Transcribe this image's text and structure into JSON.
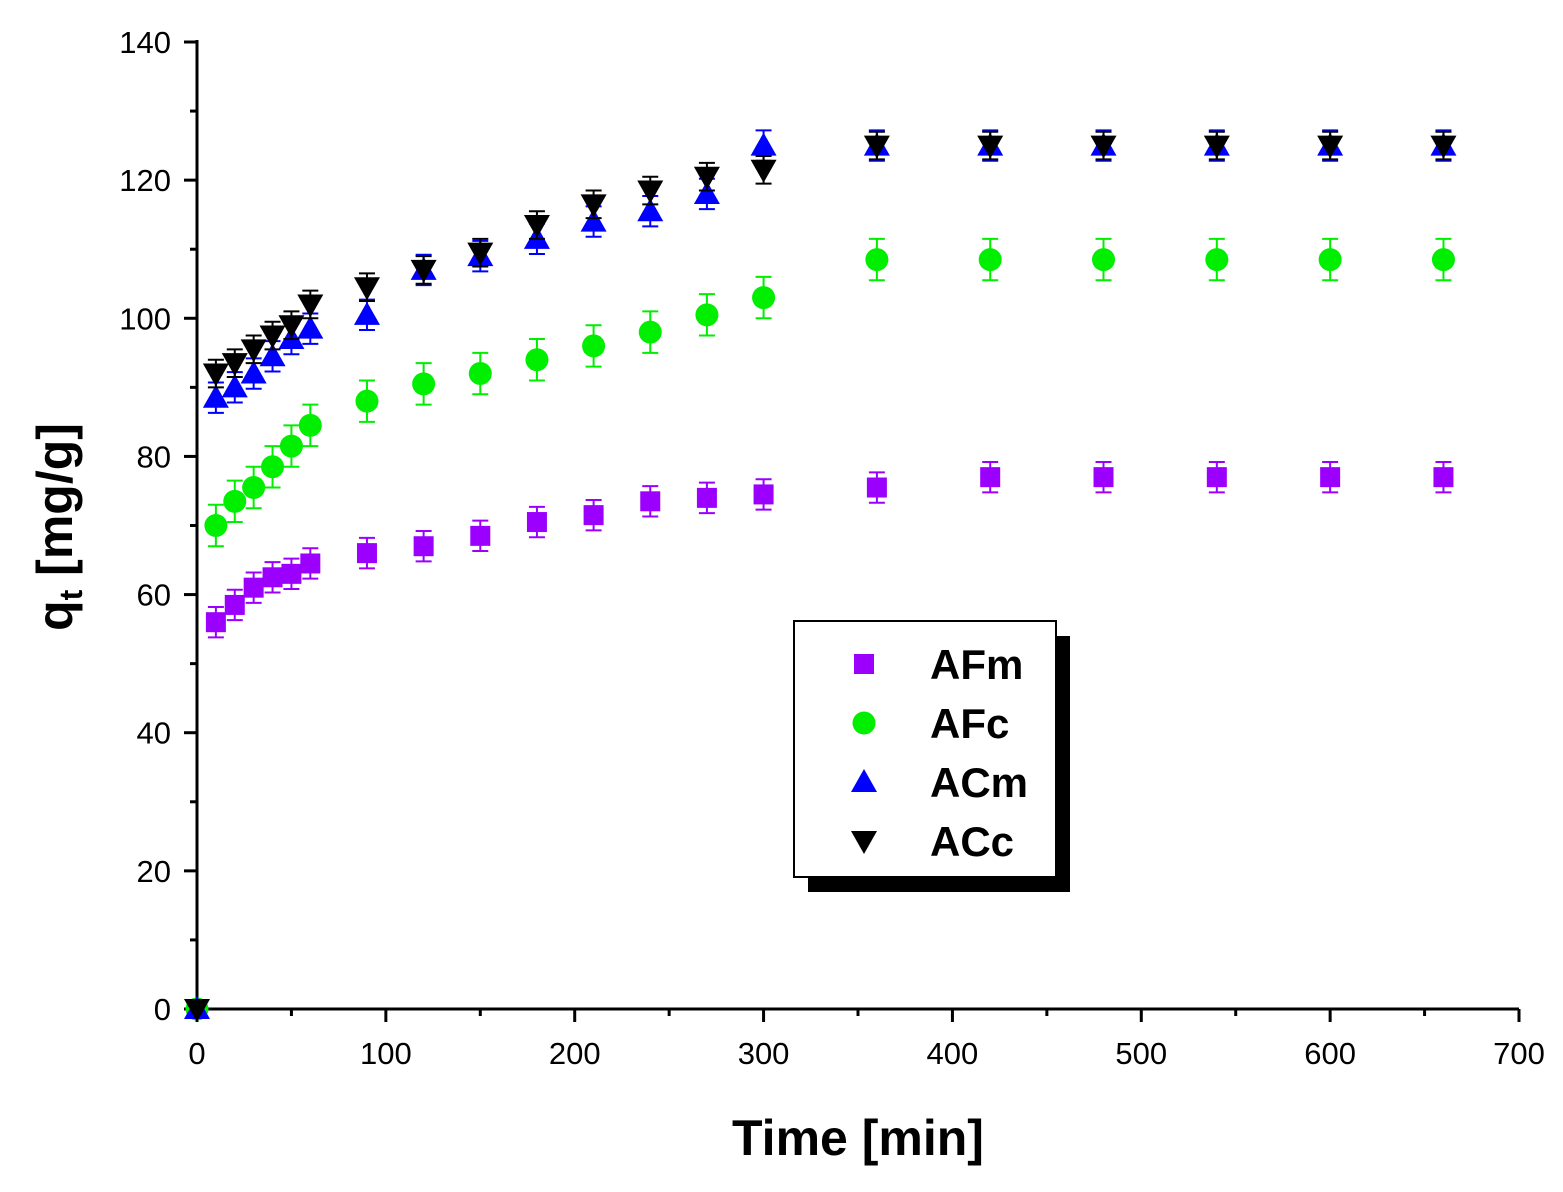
{
  "chart_data": {
    "type": "scatter",
    "title": "",
    "xlabel": "Time [min]",
    "ylabel_main": "q",
    "ylabel_sub": "t",
    "ylabel_unit": "[mg/g]",
    "xlim": [
      0,
      700
    ],
    "ylim": [
      0,
      140
    ],
    "xticks": [
      0,
      100,
      200,
      300,
      400,
      500,
      600,
      700
    ],
    "yticks": [
      0,
      20,
      40,
      60,
      80,
      100,
      120,
      140
    ],
    "grid": false,
    "legend_position": "center",
    "series": [
      {
        "name": "AFm",
        "marker": "square",
        "color": "#9B00FF",
        "error": 2.2,
        "x": [
          0,
          10,
          20,
          30,
          40,
          50,
          60,
          90,
          120,
          150,
          180,
          210,
          240,
          270,
          300,
          360,
          420,
          480,
          540,
          600,
          660
        ],
        "y": [
          0,
          56,
          58.5,
          61,
          62.5,
          63,
          64.5,
          66,
          67,
          68.5,
          70.5,
          71.5,
          73.5,
          74,
          74.5,
          75.5,
          77,
          77,
          77,
          77,
          77
        ]
      },
      {
        "name": "AFc",
        "marker": "circle",
        "color": "#00EE00",
        "error": 3.0,
        "x": [
          0,
          10,
          20,
          30,
          40,
          50,
          60,
          90,
          120,
          150,
          180,
          210,
          240,
          270,
          300,
          360,
          420,
          480,
          540,
          600,
          660
        ],
        "y": [
          0,
          70,
          73.5,
          75.5,
          78.5,
          81.5,
          84.5,
          88,
          90.5,
          92,
          94,
          96,
          98,
          100.5,
          103,
          108.5,
          108.5,
          108.5,
          108.5,
          108.5,
          108.5
        ]
      },
      {
        "name": "ACm",
        "marker": "triangle-up",
        "color": "#0000FF",
        "error": 2.2,
        "x": [
          0,
          10,
          20,
          30,
          40,
          50,
          60,
          90,
          120,
          150,
          180,
          210,
          240,
          270,
          300,
          360,
          420,
          480,
          540,
          600,
          660
        ],
        "y": [
          0,
          88.5,
          90,
          92,
          94.5,
          97,
          98.5,
          100.5,
          107,
          109,
          111.5,
          114,
          115.5,
          118,
          125,
          125,
          125,
          125,
          125,
          125,
          125
        ]
      },
      {
        "name": "ACc",
        "marker": "triangle-down",
        "color": "#000000",
        "error": 2.0,
        "x": [
          0,
          10,
          20,
          30,
          40,
          50,
          60,
          90,
          120,
          150,
          180,
          210,
          240,
          270,
          300,
          360,
          420,
          480,
          540,
          600,
          660
        ],
        "y": [
          0,
          92,
          93.5,
          95.5,
          97.5,
          99,
          102,
          104.5,
          107,
          109.5,
          113.5,
          116.5,
          118.5,
          120.5,
          121.5,
          125,
          125,
          125,
          125,
          125,
          125
        ]
      }
    ]
  }
}
